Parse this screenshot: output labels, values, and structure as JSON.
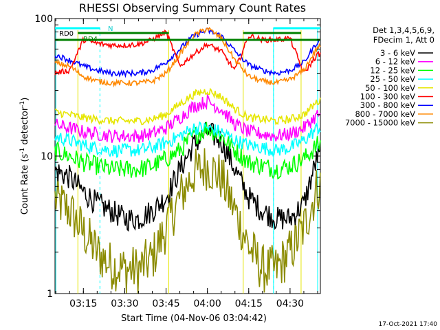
{
  "title": "RHESSI Observing Summary Count Rates",
  "ylabel_main": "Count Rate (s",
  "ylabel_sup": "-1",
  "ylabel_rest": " detector",
  "ylabel_end": ")",
  "xlabel": "Start Time (04-Nov-06 03:04:42)",
  "footer_date": "17-Oct-2021 17:40",
  "legend": {
    "header1": "Det 1,3,4,5,6,9,",
    "header2": "FDecim 1, Att 0"
  },
  "annotations": {
    "rd0": "RD0",
    "rd4": "RD4",
    "n": "N"
  },
  "colors": {
    "3-6": "#000000",
    "6-12": "#ff00ff",
    "12-25": "#00ff00",
    "25-50": "#00ffff",
    "50-100": "#e6e600",
    "100-300": "#ff0000",
    "300-800": "#0000ff",
    "800-7000": "#ff8800",
    "7000-15000": "#8b8b00",
    "saa": "#00ffff",
    "night": "#008000"
  },
  "chart_data": {
    "type": "line",
    "title": "RHESSI Observing Summary Count Rates",
    "xlabel": "Start Time (04-Nov-06 03:04:42)",
    "ylabel": "Count Rate (s-1 detector-1)",
    "yscale": "log",
    "ylim": [
      1,
      100
    ],
    "xlim": [
      "03:04:42",
      "04:41:00"
    ],
    "x_ticks": [
      "03:15",
      "03:30",
      "03:45",
      "04:00",
      "04:15",
      "04:30"
    ],
    "y_ticks": [
      "1",
      "10",
      "100"
    ],
    "x": [
      "03:04",
      "03:10",
      "03:15",
      "03:20",
      "03:25",
      "03:30",
      "03:35",
      "03:40",
      "03:45",
      "03:50",
      "03:55",
      "04:00",
      "04:05",
      "04:10",
      "04:15",
      "04:20",
      "04:25",
      "04:30",
      "04:35",
      "04:40"
    ],
    "series": [
      {
        "name": "3 - 6 keV",
        "color": "#000000",
        "values": [
          8,
          7,
          5.5,
          4.5,
          4,
          3.5,
          3.5,
          4,
          5,
          8,
          12,
          15,
          13,
          8,
          5,
          4,
          3.5,
          3.5,
          4.5,
          10
        ]
      },
      {
        "name": "6 - 12 keV",
        "color": "#ff00ff",
        "values": [
          17,
          16,
          15,
          14.5,
          14,
          14,
          14,
          14.5,
          16,
          19,
          23,
          25,
          22,
          17,
          15,
          14.5,
          14,
          14.5,
          16,
          20
        ]
      },
      {
        "name": "12 - 25 keV",
        "color": "#00ff00",
        "values": [
          11,
          10,
          9,
          8.5,
          8,
          8,
          8,
          8.5,
          9.5,
          11,
          14,
          16,
          14,
          11,
          9,
          8.5,
          8,
          8.5,
          9.5,
          12
        ]
      },
      {
        "name": "25 - 50 keV",
        "color": "#00ffff",
        "values": [
          14,
          13,
          12,
          11.5,
          11,
          11,
          11,
          11.5,
          12.5,
          14,
          16,
          16,
          15,
          13,
          12,
          11.5,
          11,
          11.5,
          13,
          16
        ]
      },
      {
        "name": "50 - 100 keV",
        "color": "#e6e600",
        "values": [
          21,
          20,
          19,
          18.5,
          18,
          18,
          18,
          18.5,
          20,
          24,
          28,
          30,
          27,
          22,
          19,
          18.5,
          18,
          18.5,
          20,
          25
        ]
      },
      {
        "name": "100 - 300 keV",
        "color": "#ff0000",
        "values": [
          40,
          42,
          70,
          66,
          64,
          64,
          65,
          70,
          80,
          45,
          55,
          65,
          58,
          42,
          75,
          70,
          70,
          72,
          40,
          55
        ]
      },
      {
        "name": "300 - 800 keV",
        "color": "#0000ff",
        "values": [
          55,
          50,
          45,
          42,
          40,
          40,
          40,
          42,
          48,
          60,
          75,
          82,
          75,
          58,
          46,
          42,
          40,
          42,
          48,
          68
        ]
      },
      {
        "name": "800 - 7000 keV",
        "color": "#ff8800",
        "values": [
          48,
          45,
          38,
          35,
          34,
          34,
          34,
          35,
          40,
          55,
          75,
          85,
          72,
          50,
          38,
          35,
          34,
          36,
          42,
          62
        ]
      },
      {
        "name": "7000 - 15000 keV",
        "color": "#8b8b00",
        "values": [
          5,
          4,
          2.8,
          2,
          1.6,
          1.5,
          1.5,
          1.8,
          3,
          5,
          7.5,
          8.5,
          7,
          4,
          2.2,
          1.5,
          1.5,
          2,
          3,
          6
        ]
      }
    ],
    "flags": {
      "saa_lines": [
        "03:05",
        "04:24",
        "04:40"
      ],
      "dashed_lines": [
        "03:21",
        "04:24",
        "04:40"
      ],
      "attenuator_lines": [
        "03:13",
        "03:46",
        "04:13",
        "04:34"
      ]
    }
  }
}
